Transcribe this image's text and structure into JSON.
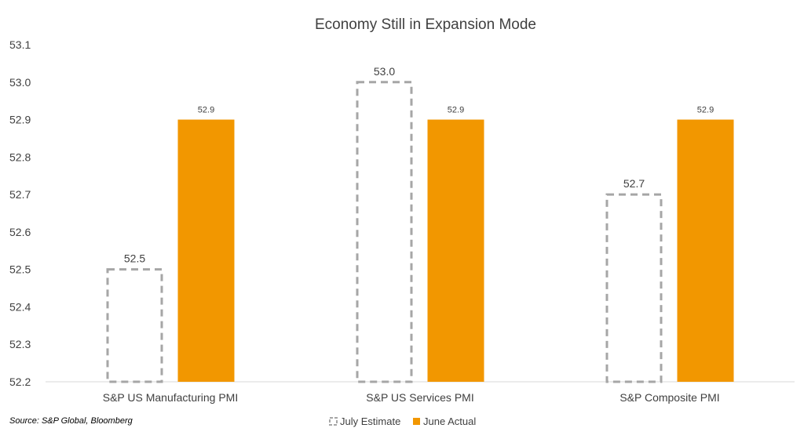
{
  "chart_data": {
    "type": "bar",
    "title": "Economy Still in Expansion Mode",
    "categories": [
      "S&P US Manufacturing PMI",
      "S&P US Services PMI",
      "S&P Composite PMI"
    ],
    "series": [
      {
        "name": "July Estimate",
        "values": [
          52.5,
          53.0,
          52.7
        ],
        "labels": [
          "52.5",
          "53.0",
          "52.7"
        ],
        "style": "dashed-outline",
        "color": "#a6a6a6"
      },
      {
        "name": "June Actual",
        "values": [
          52.9,
          52.9,
          52.9
        ],
        "labels": [
          "52.9",
          "52.9",
          "52.9"
        ],
        "style": "filled",
        "color": "#f29700"
      }
    ],
    "ylim": [
      52.2,
      53.1
    ],
    "yticks": [
      "52.2",
      "52.3",
      "52.4",
      "52.5",
      "52.6",
      "52.7",
      "52.8",
      "52.9",
      "53.0",
      "53.1"
    ],
    "xlabel": "",
    "ylabel": "",
    "grid": false,
    "legend": "bottom-center"
  },
  "source": "Source: S&P Global, Bloomberg"
}
